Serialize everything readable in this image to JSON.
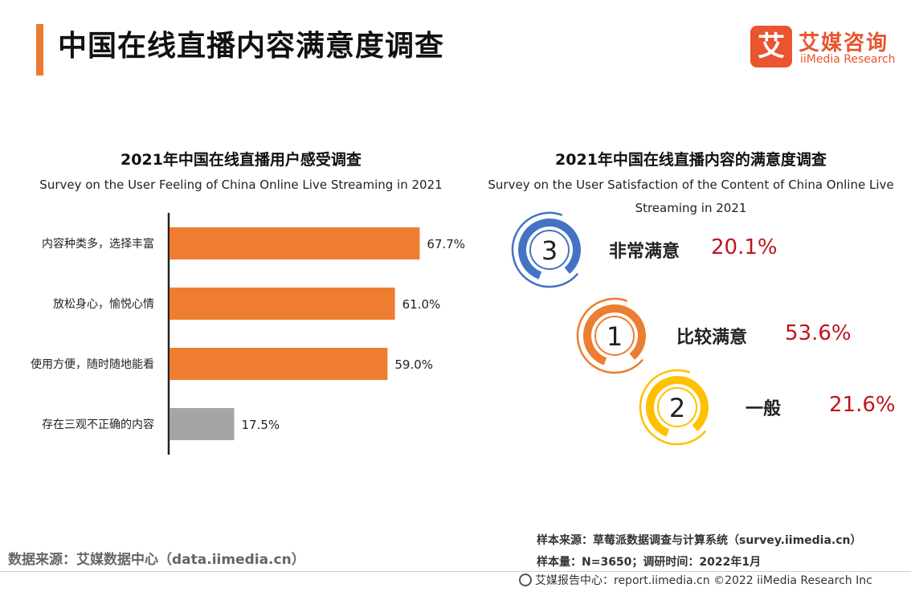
{
  "page": {
    "title": "中国在线直播内容满意度调查",
    "accent_color": "#EE7A32"
  },
  "logo": {
    "mark": "艾",
    "cn": "艾媒咨询",
    "en": "iiMedia Research"
  },
  "left_panel": {
    "title": "2021年中国在线直播用户感受调查",
    "subtitle": "Survey on the User Feeling of China Online Live Streaming in 2021"
  },
  "right_panel": {
    "title": "2021年中国在线直播内容的满意度调查",
    "subtitle": "Survey on the User Satisfaction of the Content of China Online Live Streaming in 2021"
  },
  "chart_data": [
    {
      "type": "bar",
      "orientation": "horizontal",
      "title": "2021年中国在线直播用户感受调查",
      "subtitle": "Survey on the User Feeling of China Online Live Streaming in 2021",
      "categories": [
        "内容种类多，选择丰富",
        "放松身心，愉悦心情",
        "使用方便，随时随地能看",
        "存在三观不正确的内容"
      ],
      "values": [
        67.7,
        61.0,
        59.0,
        17.5
      ],
      "value_labels": [
        "67.7%",
        "61.0%",
        "59.0%",
        "17.5%"
      ],
      "bar_colors": [
        "#EE7D31",
        "#EE7D31",
        "#EE7D31",
        "#A5A5A5"
      ],
      "xlim": [
        0,
        100
      ],
      "unit": "%",
      "grid": false
    },
    {
      "type": "pie",
      "style": "ring-icons",
      "title": "2021年中国在线直播内容的满意度调查",
      "subtitle": "Survey on the User Satisfaction of the Content of China Online Live Streaming in 2021",
      "items": [
        {
          "rank": "3",
          "label": "非常满意",
          "value": 20.1,
          "value_label": "20.1%",
          "color": "#4472C4"
        },
        {
          "rank": "1",
          "label": "比较满意",
          "value": 53.6,
          "value_label": "53.6%",
          "color": "#ED7D31"
        },
        {
          "rank": "2",
          "label": "一般",
          "value": 21.6,
          "value_label": "21.6%",
          "color": "#FFC000"
        }
      ]
    }
  ],
  "sources": {
    "left": "数据来源：艾媒数据中心（data.iimedia.cn）",
    "right_line1": "样本来源：草莓派数据调查与计算系统（survey.iimedia.cn）",
    "right_line2": "样本量：N=3650；调研时间：2022年1月"
  },
  "footer": {
    "text": "艾媒报告中心：report.iimedia.cn  ©2022  iiMedia Research  Inc"
  }
}
